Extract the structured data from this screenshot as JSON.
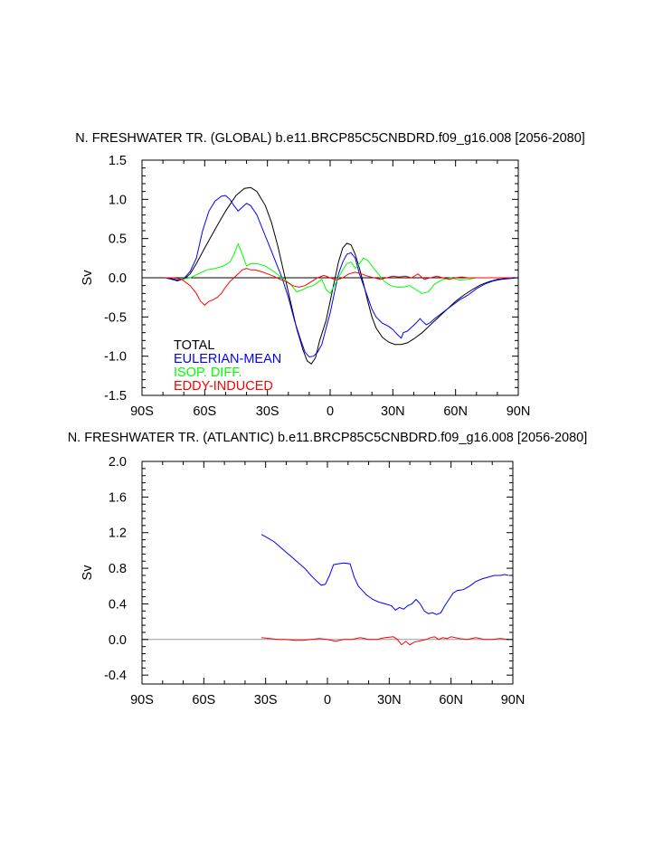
{
  "chart_data": [
    {
      "type": "line",
      "title": "N. FRESHWATER TR. (GLOBAL) b.e11.BRCP85C5CNBDRD.f09_g16.008 [2056-2080]",
      "xlabel": "",
      "ylabel": "Sv",
      "xlim": [
        -90,
        90
      ],
      "ylim": [
        -1.5,
        1.5
      ],
      "x_ticks": [
        -90,
        -60,
        -30,
        0,
        30,
        60,
        90
      ],
      "x_tick_labels": [
        "90S",
        "60S",
        "30S",
        "0",
        "30N",
        "60N",
        "90N"
      ],
      "y_ticks": [
        -1.5,
        -1.0,
        -0.5,
        0.0,
        0.5,
        1.0,
        1.5
      ],
      "y_tick_labels": [
        "-1.5",
        "-1.0",
        "-0.5",
        "0.0",
        "0.5",
        "1.0",
        "1.5"
      ],
      "zero_line": true,
      "legend": [
        "TOTAL",
        "EULERIAN-MEAN",
        "ISOP. DIFF.",
        "EDDY-INDUCED"
      ],
      "legend_placement": "bottom-left",
      "series": [
        {
          "name": "TOTAL",
          "color": "#000000",
          "x": [
            -79,
            -76,
            -73,
            -70,
            -67,
            -64,
            -60,
            -55,
            -50,
            -45,
            -41,
            -38,
            -35,
            -31,
            -28,
            -25,
            -22,
            -19,
            -16,
            -13,
            -11,
            -9,
            -7,
            -5,
            -2,
            0,
            2,
            4,
            6,
            8,
            10,
            12,
            14,
            16,
            18,
            20,
            22,
            25,
            28,
            31,
            34,
            37,
            40,
            44,
            48,
            52,
            56,
            60,
            64,
            68,
            72,
            76,
            80,
            84,
            87,
            90
          ],
          "y": [
            0.0,
            -0.01,
            -0.03,
            -0.02,
            0.05,
            0.18,
            0.38,
            0.62,
            0.85,
            1.05,
            1.14,
            1.15,
            1.1,
            0.92,
            0.7,
            0.4,
            0.05,
            -0.3,
            -0.65,
            -0.92,
            -1.06,
            -1.1,
            -1.02,
            -0.8,
            -0.55,
            -0.3,
            -0.05,
            0.2,
            0.38,
            0.44,
            0.42,
            0.3,
            0.12,
            -0.08,
            -0.3,
            -0.5,
            -0.64,
            -0.76,
            -0.82,
            -0.85,
            -0.85,
            -0.83,
            -0.78,
            -0.7,
            -0.6,
            -0.5,
            -0.4,
            -0.3,
            -0.22,
            -0.15,
            -0.09,
            -0.05,
            -0.02,
            -0.01,
            0.0,
            0.0
          ]
        },
        {
          "name": "EULERIAN-MEAN",
          "color": "#0000ff",
          "x": [
            -79,
            -76,
            -73,
            -70,
            -67,
            -64,
            -61,
            -58,
            -55,
            -52,
            -50,
            -48,
            -46,
            -44,
            -42,
            -40,
            -38,
            -35,
            -32,
            -29,
            -26,
            -23,
            -20,
            -17,
            -14,
            -12,
            -10,
            -8,
            -6,
            -4,
            -2,
            0,
            2,
            4,
            6,
            8,
            10,
            12,
            14,
            16,
            18,
            20,
            22,
            25,
            28,
            30,
            32,
            34,
            35,
            37,
            39,
            41,
            43,
            44,
            46,
            48,
            50,
            54,
            58,
            62,
            66,
            70,
            74,
            78,
            82,
            86,
            90
          ],
          "y": [
            0.0,
            -0.02,
            -0.04,
            -0.01,
            0.08,
            0.25,
            0.6,
            0.85,
            0.98,
            1.04,
            1.05,
            1.0,
            0.92,
            0.85,
            0.9,
            0.95,
            0.92,
            0.8,
            0.6,
            0.4,
            0.2,
            0.0,
            -0.25,
            -0.55,
            -0.8,
            -0.95,
            -1.01,
            -1.0,
            -0.95,
            -0.85,
            -0.65,
            -0.45,
            -0.2,
            0.05,
            0.2,
            0.3,
            0.32,
            0.25,
            0.05,
            -0.1,
            -0.25,
            -0.4,
            -0.5,
            -0.58,
            -0.62,
            -0.66,
            -0.72,
            -0.77,
            -0.7,
            -0.68,
            -0.63,
            -0.58,
            -0.52,
            -0.55,
            -0.6,
            -0.57,
            -0.52,
            -0.44,
            -0.36,
            -0.28,
            -0.22,
            -0.14,
            -0.08,
            -0.04,
            -0.02,
            -0.01,
            0.0
          ]
        },
        {
          "name": "ISOP. DIFF.",
          "color": "#00ff00",
          "x": [
            -79,
            -75,
            -71,
            -67,
            -63,
            -59,
            -55,
            -51,
            -48,
            -46,
            -44,
            -42,
            -40,
            -38,
            -35,
            -31,
            -27,
            -23,
            -19,
            -16,
            -13,
            -11,
            -8,
            -6,
            -4,
            -2,
            0,
            2,
            4,
            6,
            8,
            10,
            12,
            14,
            16,
            18,
            20,
            23,
            26,
            29,
            32,
            35,
            38,
            41,
            44,
            47,
            50,
            54,
            58,
            62,
            66,
            70,
            74,
            78,
            82,
            86,
            90
          ],
          "y": [
            0.0,
            0.0,
            -0.02,
            0.0,
            0.05,
            0.1,
            0.12,
            0.15,
            0.2,
            0.3,
            0.43,
            0.3,
            0.15,
            0.18,
            0.18,
            0.15,
            0.08,
            0.0,
            -0.08,
            -0.18,
            -0.15,
            -0.12,
            -0.1,
            -0.06,
            -0.02,
            -0.15,
            -0.2,
            -0.1,
            0.0,
            0.1,
            0.18,
            0.2,
            0.12,
            0.18,
            0.25,
            0.22,
            0.15,
            0.05,
            -0.05,
            -0.1,
            -0.12,
            -0.12,
            -0.1,
            -0.15,
            -0.2,
            -0.18,
            -0.08,
            -0.02,
            0.0,
            -0.03,
            -0.02,
            0.0,
            0.0,
            0.0,
            0.0,
            0.0,
            0.0
          ]
        },
        {
          "name": "EDDY-INDUCED",
          "color": "#ff0000",
          "x": [
            -79,
            -75,
            -71,
            -67,
            -64,
            -62,
            -60,
            -58,
            -56,
            -54,
            -52,
            -50,
            -48,
            -46,
            -44,
            -42,
            -40,
            -38,
            -36,
            -33,
            -30,
            -27,
            -24,
            -21,
            -18,
            -15,
            -12,
            -9,
            -6,
            -3,
            0,
            3,
            6,
            9,
            12,
            15,
            18,
            21,
            24,
            27,
            30,
            33,
            36,
            39,
            42,
            45,
            48,
            51,
            54,
            57,
            60,
            63,
            66,
            70,
            74,
            78,
            82,
            86,
            90
          ],
          "y": [
            0.0,
            0.0,
            -0.02,
            -0.1,
            -0.2,
            -0.3,
            -0.35,
            -0.3,
            -0.28,
            -0.25,
            -0.2,
            -0.12,
            -0.05,
            0.0,
            0.05,
            0.1,
            0.12,
            0.1,
            0.1,
            0.08,
            0.05,
            0.02,
            -0.02,
            -0.05,
            -0.1,
            -0.12,
            -0.1,
            -0.05,
            0.0,
            0.03,
            0.0,
            -0.03,
            0.0,
            0.05,
            0.07,
            0.05,
            0.02,
            0.0,
            -0.02,
            0.0,
            0.02,
            0.01,
            0.02,
            0.0,
            0.05,
            -0.02,
            0.0,
            0.02,
            0.0,
            -0.02,
            0.0,
            0.01,
            0.0,
            0.0,
            0.0,
            0.0,
            0.0,
            0.0,
            0.0
          ]
        }
      ]
    },
    {
      "type": "line",
      "title": "N. FRESHWATER TR. (ATLANTIC) b.e11.BRCP85C5CNBDRD.f09_g16.008 [2056-2080]",
      "xlabel": "",
      "ylabel": "Sv",
      "xlim": [
        -90,
        90
      ],
      "ylim": [
        -0.5,
        2.0
      ],
      "x_ticks": [
        -90,
        -60,
        -30,
        0,
        30,
        60,
        90
      ],
      "x_tick_labels": [
        "90S",
        "60S",
        "30S",
        "0",
        "30N",
        "60N",
        "90N"
      ],
      "y_ticks": [
        -0.4,
        0.0,
        0.4,
        0.8,
        1.2,
        1.6,
        2.0
      ],
      "y_tick_labels": [
        "-0.4",
        "0.0",
        "0.4",
        "0.8",
        "1.2",
        "1.6",
        "2.0"
      ],
      "zero_line": true,
      "series": [
        {
          "name": "EULERIAN-MEAN",
          "color": "#0000ff",
          "x": [
            -32,
            -29,
            -26,
            -23,
            -20,
            -17,
            -14,
            -11,
            -8,
            -5,
            -3,
            -1,
            1,
            3,
            5,
            8,
            11,
            13,
            15,
            17,
            19,
            22,
            25,
            28,
            31,
            33,
            35,
            37,
            39,
            41,
            43,
            45,
            47,
            49,
            51,
            53,
            55,
            57,
            59,
            61,
            63,
            66,
            69,
            72,
            75,
            78,
            81,
            84,
            86,
            88
          ],
          "y": [
            1.18,
            1.14,
            1.1,
            1.04,
            0.98,
            0.92,
            0.86,
            0.8,
            0.72,
            0.65,
            0.61,
            0.62,
            0.72,
            0.84,
            0.85,
            0.86,
            0.85,
            0.7,
            0.6,
            0.55,
            0.5,
            0.45,
            0.42,
            0.4,
            0.38,
            0.33,
            0.36,
            0.34,
            0.38,
            0.4,
            0.45,
            0.4,
            0.32,
            0.29,
            0.3,
            0.28,
            0.3,
            0.38,
            0.45,
            0.52,
            0.55,
            0.56,
            0.6,
            0.65,
            0.68,
            0.7,
            0.72,
            0.72,
            0.73,
            0.72
          ]
        },
        {
          "name": "EDDY-INDUCED",
          "color": "#ff0000",
          "x": [
            -32,
            -28,
            -24,
            -20,
            -16,
            -12,
            -8,
            -4,
            0,
            4,
            8,
            12,
            16,
            20,
            24,
            28,
            32,
            34,
            36,
            38,
            40,
            42,
            44,
            46,
            48,
            50,
            52,
            54,
            56,
            58,
            60,
            64,
            68,
            72,
            76,
            80,
            84,
            88
          ],
          "y": [
            0.02,
            0.01,
            0.0,
            0.0,
            -0.01,
            -0.01,
            0.0,
            0.01,
            0.0,
            -0.02,
            0.0,
            0.0,
            0.02,
            0.0,
            0.0,
            0.02,
            0.03,
            0.0,
            -0.06,
            -0.02,
            -0.06,
            -0.03,
            -0.02,
            -0.01,
            0.0,
            0.02,
            0.03,
            0.0,
            0.02,
            0.01,
            0.03,
            0.01,
            0.0,
            0.02,
            0.0,
            0.0,
            0.01,
            0.0
          ]
        }
      ]
    }
  ]
}
